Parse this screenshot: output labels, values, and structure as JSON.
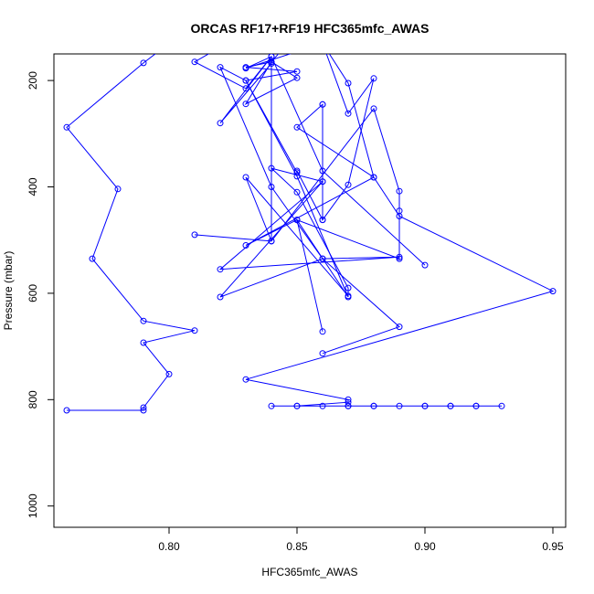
{
  "chart_data": {
    "type": "line",
    "title": "ORCAS RF17+RF19 HFC365mfc_AWAS",
    "xlabel": "HFC365mfc_AWAS",
    "ylabel": "Pressure (mbar)",
    "xlim": [
      0.755,
      0.955
    ],
    "ylim": [
      1040,
      150
    ],
    "y_reversed": true,
    "grid": false,
    "legend": "none",
    "x_ticks": [
      0.8,
      0.85,
      0.9,
      0.95
    ],
    "x_tick_labels": [
      "0.80",
      "0.85",
      "0.90",
      "0.95"
    ],
    "y_ticks": [
      200,
      400,
      600,
      800,
      1000
    ],
    "y_tick_labels": [
      "200",
      "400",
      "600",
      "800",
      "1000"
    ],
    "marker": "open-circle",
    "series": [
      {
        "color": "#0000ff",
        "points": [
          [
            0.76,
            820
          ],
          [
            0.79,
            820
          ],
          [
            0.79,
            815
          ],
          [
            0.8,
            752
          ],
          [
            0.79,
            693
          ],
          [
            0.81,
            670
          ],
          [
            0.79,
            652
          ],
          [
            0.77,
            535
          ],
          [
            0.78,
            404
          ],
          [
            0.76,
            288
          ],
          [
            0.79,
            167
          ],
          [
            0.8,
            130
          ]
        ]
      },
      {
        "color": "#0000ff",
        "points": [
          [
            0.84,
            812
          ],
          [
            0.85,
            812
          ],
          [
            0.86,
            812
          ],
          [
            0.87,
            812
          ],
          [
            0.88,
            812
          ],
          [
            0.89,
            812
          ],
          [
            0.9,
            812
          ],
          [
            0.91,
            812
          ],
          [
            0.92,
            812
          ],
          [
            0.93,
            812
          ],
          [
            0.92,
            812
          ],
          [
            0.91,
            812
          ],
          [
            0.9,
            812
          ],
          [
            0.88,
            812
          ],
          [
            0.87,
            812
          ],
          [
            0.85,
            812
          ],
          [
            0.87,
            805
          ],
          [
            0.87,
            800
          ],
          [
            0.83,
            762
          ],
          [
            0.95,
            596
          ],
          [
            0.89,
            455
          ],
          [
            0.88,
            382
          ],
          [
            0.85,
            288
          ],
          [
            0.86,
            245
          ],
          [
            0.86,
            390
          ],
          [
            0.82,
            555
          ],
          [
            0.89,
            532
          ],
          [
            0.86,
            535
          ],
          [
            0.82,
            607
          ],
          [
            0.86,
            390
          ],
          [
            0.84,
            365
          ],
          [
            0.85,
            410
          ],
          [
            0.87,
            590
          ],
          [
            0.87,
            605
          ],
          [
            0.83,
            382
          ],
          [
            0.84,
            502
          ],
          [
            0.84,
            168
          ],
          [
            0.82,
            280
          ],
          [
            0.84,
            155
          ],
          [
            0.83,
            177
          ],
          [
            0.86,
            130
          ]
        ]
      },
      {
        "color": "#0000ff",
        "points": [
          [
            0.86,
            713
          ],
          [
            0.89,
            663
          ],
          [
            0.86,
            535
          ],
          [
            0.84,
            400
          ],
          [
            0.82,
            175
          ],
          [
            0.83,
            200
          ],
          [
            0.85,
            373
          ],
          [
            0.85,
            370
          ],
          [
            0.86,
            462
          ],
          [
            0.86,
            245
          ],
          [
            0.86,
            462
          ],
          [
            0.87,
            396
          ],
          [
            0.88,
            196
          ],
          [
            0.87,
            262
          ],
          [
            0.86,
            130
          ]
        ]
      },
      {
        "color": "#0000ff",
        "points": [
          [
            0.86,
            672
          ],
          [
            0.85,
            462
          ],
          [
            0.83,
            510
          ],
          [
            0.88,
            382
          ],
          [
            0.87,
            205
          ],
          [
            0.86,
            130
          ]
        ]
      },
      {
        "color": "#0000ff",
        "points": [
          [
            0.81,
            490
          ],
          [
            0.84,
            502
          ],
          [
            0.88,
            253
          ],
          [
            0.89,
            408
          ],
          [
            0.89,
            445
          ],
          [
            0.89,
            535
          ],
          [
            0.85,
            462
          ],
          [
            0.87,
            607
          ],
          [
            0.85,
            380
          ],
          [
            0.83,
            200
          ],
          [
            0.85,
            183
          ],
          [
            0.83,
            175
          ],
          [
            0.84,
            165
          ],
          [
            0.85,
            195
          ],
          [
            0.83,
            244
          ],
          [
            0.84,
            165
          ],
          [
            0.85,
            110
          ]
        ]
      },
      {
        "color": "#0000ff",
        "points": [
          [
            0.9,
            547
          ],
          [
            0.86,
            370
          ],
          [
            0.84,
            155
          ],
          [
            0.83,
            215
          ],
          [
            0.81,
            165
          ],
          [
            0.83,
            110
          ]
        ]
      }
    ]
  }
}
